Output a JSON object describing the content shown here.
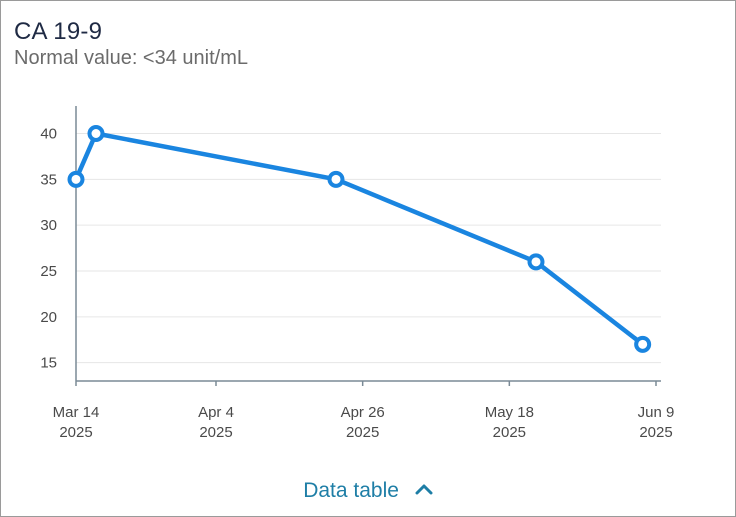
{
  "card": {
    "title": "CA 19-9",
    "subtitle": "Normal value: <34 unit/mL"
  },
  "footer": {
    "data_table_label": "Data table",
    "toggle_icon": "chevron-up-icon"
  },
  "colors": {
    "series": "#1a85e0",
    "title": "#1f2a44",
    "link": "#1e7ea6",
    "grid": "#e6e6e6",
    "axis": "#7a8a96"
  },
  "chart_data": {
    "type": "line",
    "title": "CA 19-9",
    "subtitle": "Normal value: <34 unit/mL",
    "xlabel": "",
    "ylabel": "",
    "x": [
      "2025-03-14",
      "2025-03-17",
      "2025-04-22",
      "2025-05-22",
      "2025-06-07"
    ],
    "values": [
      35,
      40,
      35,
      26,
      17
    ],
    "yticks": [
      15,
      20,
      25,
      30,
      35,
      40
    ],
    "ylim": [
      13,
      43
    ],
    "xlim": [
      "2025-03-14",
      "2025-06-09"
    ],
    "xticks": [
      {
        "date": "2025-03-14",
        "line1": "Mar 14",
        "line2": "2025"
      },
      {
        "date": "2025-04-04",
        "line1": "Apr 4",
        "line2": "2025"
      },
      {
        "date": "2025-04-26",
        "line1": "Apr 26",
        "line2": "2025"
      },
      {
        "date": "2025-05-18",
        "line1": "May 18",
        "line2": "2025"
      },
      {
        "date": "2025-06-09",
        "line1": "Jun 9",
        "line2": "2025"
      }
    ],
    "grid": true,
    "legend": "none"
  }
}
